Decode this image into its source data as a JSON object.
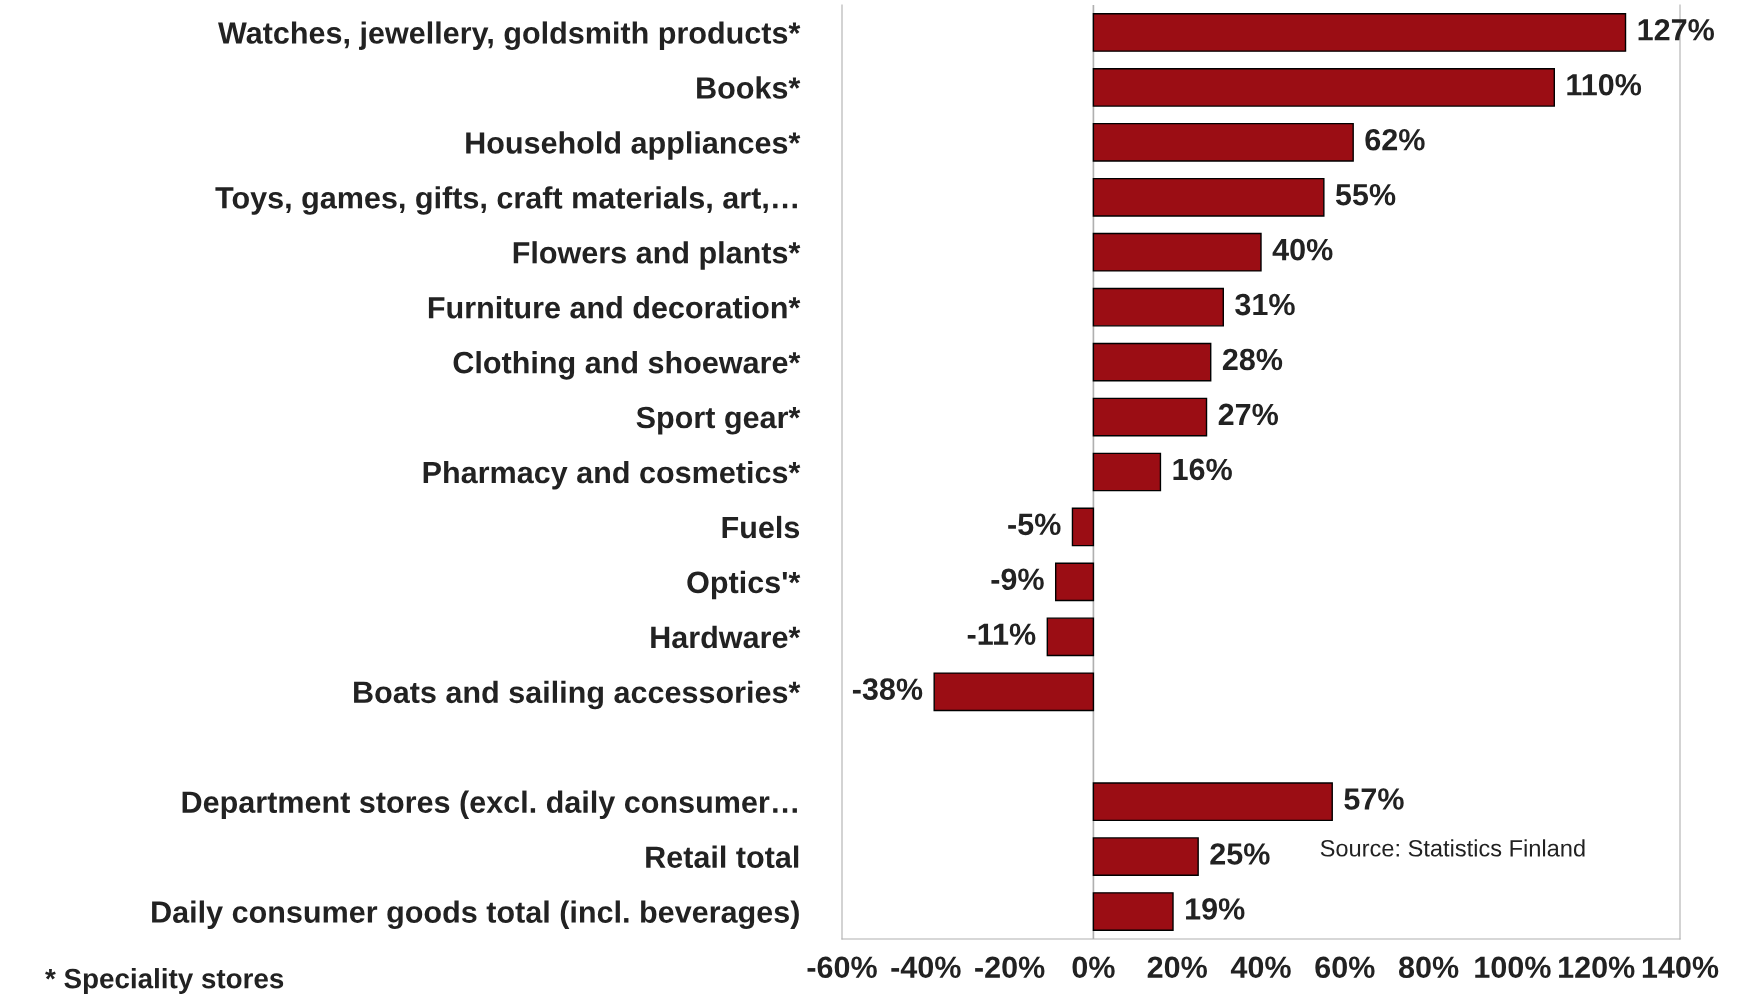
{
  "chart_data": {
    "type": "bar",
    "orientation": "horizontal",
    "categories": [
      "Watches, jewellery, goldsmith products*",
      "Books*",
      "Household appliances*",
      "Toys, games, gifts, craft materials, art,…",
      "Flowers and plants*",
      "Furniture and decoration*",
      "Clothing and shoeware*",
      "Sport gear*",
      "Pharmacy and cosmetics*",
      "Fuels",
      "Optics'*",
      "Hardware*",
      "Boats and sailing accessories*",
      null,
      "Department stores (excl. daily consumer…",
      "Retail total",
      "Daily consumer goods total (incl. beverages)"
    ],
    "values": [
      127,
      110,
      62,
      55,
      40,
      31,
      28,
      27,
      16,
      -5,
      -9,
      -11,
      -38,
      null,
      57,
      25,
      19
    ],
    "value_labels": [
      "127%",
      "110%",
      "62%",
      "55%",
      "40%",
      "31%",
      "28%",
      "27%",
      "16%",
      "-5%",
      "-9%",
      "-11%",
      "-38%",
      null,
      "57%",
      "25%",
      "19%"
    ],
    "color": "#9b0d14",
    "xlim": [
      -60,
      140
    ],
    "xticks": [
      {
        "value": -60,
        "label": "-60%"
      },
      {
        "value": -40,
        "label": "-40%"
      },
      {
        "value": -20,
        "label": "-20%"
      },
      {
        "value": 0,
        "label": "0%"
      },
      {
        "value": 20,
        "label": "20%"
      },
      {
        "value": 40,
        "label": "40%"
      },
      {
        "value": 60,
        "label": "60%"
      },
      {
        "value": 80,
        "label": "80%"
      },
      {
        "value": 100,
        "label": "100%"
      },
      {
        "value": 120,
        "label": "120%"
      },
      {
        "value": 140,
        "label": "140%"
      }
    ],
    "ref_lines": [
      {
        "axis": "x",
        "value": 0,
        "color": "#b0b0b0"
      }
    ],
    "grid": false,
    "legend": false,
    "annotations": [
      "Source: Statistics Finland",
      "* Speciality stores"
    ]
  }
}
